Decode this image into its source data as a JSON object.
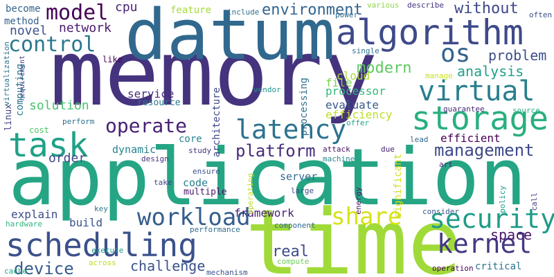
{
  "words": [
    {
      "text": "memory",
      "color": "#46337e"
    },
    {
      "text": "application",
      "color": "#25a584"
    },
    {
      "text": "datum",
      "color": "#31688e"
    },
    {
      "text": "time",
      "color": "#a0da39"
    },
    {
      "text": "algorithm",
      "color": "#3e4a89"
    },
    {
      "text": "scheduling",
      "color": "#3b518b"
    },
    {
      "text": "storage",
      "color": "#29af7f"
    },
    {
      "text": "task",
      "color": "#1fa187"
    },
    {
      "text": "latency",
      "color": "#2c728e"
    },
    {
      "text": "virtual",
      "color": "#277f8e"
    },
    {
      "text": "kernel",
      "color": "#443983"
    },
    {
      "text": "security",
      "color": "#1e9c89"
    },
    {
      "text": "workload",
      "color": "#355f8d"
    },
    {
      "text": "share",
      "color": "#d8e219"
    },
    {
      "text": "os",
      "color": "#33638d"
    },
    {
      "text": "model",
      "color": "#440154"
    },
    {
      "text": "control",
      "color": "#2a788e"
    },
    {
      "text": "operate",
      "color": "#482173"
    },
    {
      "text": "management",
      "color": "#3e4989"
    },
    {
      "text": "platform",
      "color": "#472c7a"
    },
    {
      "text": "device",
      "color": "#365c8d"
    },
    {
      "text": "challenge",
      "color": "#3b528b"
    },
    {
      "text": "environment",
      "color": "#32648e"
    },
    {
      "text": "modern",
      "color": "#5ec962"
    },
    {
      "text": "without",
      "color": "#3f4788"
    },
    {
      "text": "analysis",
      "color": "#1fa088"
    },
    {
      "text": "problem",
      "color": "#3c4f8a"
    },
    {
      "text": "space",
      "color": "#48186a"
    },
    {
      "text": "real",
      "color": "#3e4c8a"
    },
    {
      "text": "novel",
      "color": "#3b528b"
    },
    {
      "text": "network",
      "color": "#481a6c"
    },
    {
      "text": "cpu",
      "color": "#482576"
    },
    {
      "text": "solution",
      "color": "#48c16e"
    },
    {
      "text": "order",
      "color": "#414487"
    },
    {
      "text": "explain",
      "color": "#3e4c8a"
    },
    {
      "text": "build",
      "color": "#3b528b"
    },
    {
      "text": "framework",
      "color": "#481f70"
    },
    {
      "text": "efficiency",
      "color": "#bddf26"
    },
    {
      "text": "processor",
      "color": "#35b779"
    },
    {
      "text": "evaluate",
      "color": "#38598c"
    },
    {
      "text": "efficient",
      "color": "#440154"
    },
    {
      "text": "file",
      "color": "#7ad151"
    },
    {
      "text": "cloud",
      "color": "#a8db34"
    },
    {
      "text": "dynamic",
      "color": "#26828e"
    },
    {
      "text": "service",
      "color": "#472d7b"
    },
    {
      "text": "resource",
      "color": "#2a768e"
    },
    {
      "text": "feature",
      "color": "#a5db36"
    },
    {
      "text": "code",
      "color": "#26818e"
    },
    {
      "text": "server",
      "color": "#31688e"
    },
    {
      "text": "multiple",
      "color": "#481668"
    },
    {
      "text": "core",
      "color": "#26828e"
    },
    {
      "text": "architecture",
      "color": "#3f4788"
    },
    {
      "text": "processing",
      "color": "#2c728e"
    },
    {
      "text": "significant",
      "color": "#d2e21b"
    },
    {
      "text": "become",
      "color": "#33638d"
    },
    {
      "text": "method",
      "color": "#35608d"
    },
    {
      "text": "include",
      "color": "#2d708e"
    },
    {
      "text": "power",
      "color": "#31688e"
    },
    {
      "text": "various",
      "color": "#8fd744"
    },
    {
      "text": "describe",
      "color": "#46327e"
    },
    {
      "text": "often",
      "color": "#3d4e8a"
    },
    {
      "text": "computing",
      "color": "#29798e"
    },
    {
      "text": "requirement",
      "color": "#453781"
    },
    {
      "text": "virtualization",
      "color": "#2c718e"
    },
    {
      "text": "linux",
      "color": "#414487"
    },
    {
      "text": "like",
      "color": "#440154"
    },
    {
      "text": "single",
      "color": "#2e6f8e"
    },
    {
      "text": "vendor",
      "color": "#1f958b"
    },
    {
      "text": "manage",
      "color": "#cae11f"
    },
    {
      "text": "guarantee",
      "color": "#482878"
    },
    {
      "text": "source",
      "color": "#2ab07f"
    },
    {
      "text": "offer",
      "color": "#20a386"
    },
    {
      "text": "lead",
      "color": "#31688e"
    },
    {
      "text": "cost",
      "color": "#52c569"
    },
    {
      "text": "perform",
      "color": "#2d708e"
    },
    {
      "text": "design",
      "color": "#46327e"
    },
    {
      "text": "study",
      "color": "#46307e"
    },
    {
      "text": "attack",
      "color": "#471164"
    },
    {
      "text": "due",
      "color": "#482173"
    },
    {
      "text": "art",
      "color": "#482475"
    },
    {
      "text": "ensure",
      "color": "#3b528b"
    },
    {
      "text": "machine",
      "color": "#23898e"
    },
    {
      "text": "take",
      "color": "#404688"
    },
    {
      "text": "large",
      "color": "#3f4889"
    },
    {
      "text": "policy",
      "color": "#1f9e89"
    },
    {
      "text": "call",
      "color": "#46337e"
    },
    {
      "text": "key",
      "color": "#2a788e"
    },
    {
      "text": "energy",
      "color": "#481b6d"
    },
    {
      "text": "operating",
      "color": "#bade28"
    },
    {
      "text": "consider",
      "color": "#39568c"
    },
    {
      "text": "hardware",
      "color": "#2fb47c"
    },
    {
      "text": "execute",
      "color": "#1f988b"
    },
    {
      "text": "performance",
      "color": "#2e6e8e"
    },
    {
      "text": "component",
      "color": "#31688e"
    },
    {
      "text": "cache",
      "color": "#22a785"
    },
    {
      "text": "across",
      "color": "#bade28"
    },
    {
      "text": "mechanism",
      "color": "#3b528b"
    },
    {
      "text": "compute",
      "color": "#6ece58"
    },
    {
      "text": "operation",
      "color": "#450457"
    },
    {
      "text": "critical",
      "color": "#2c728e"
    }
  ]
}
